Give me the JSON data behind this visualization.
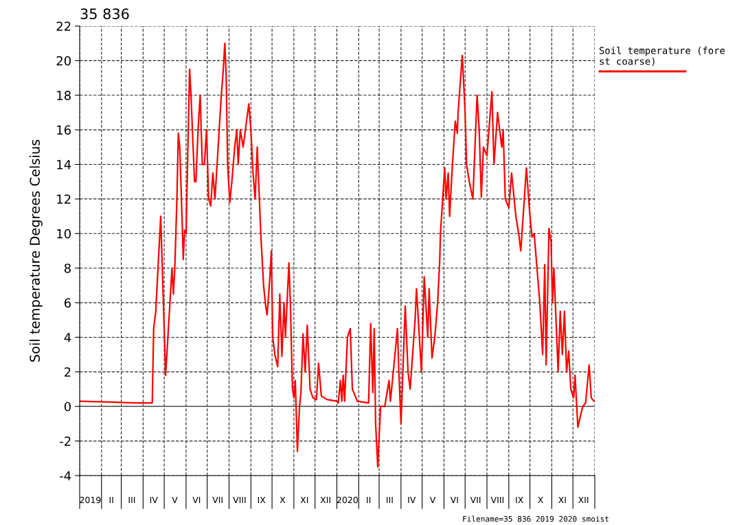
{
  "chart_data": {
    "type": "line",
    "title": "35 836",
    "ylabel": "Soil temperature Degrees Celsius",
    "annotations": [
      "Filename=35 836 2019 2020 smoist"
    ],
    "x": [
      "2019-01-01",
      "2019-02-15",
      "2019-03-20",
      "2019-04-14",
      "2019-04-16",
      "2019-04-19",
      "2019-04-26",
      "2019-05-03",
      "2019-05-12",
      "2019-05-14",
      "2019-05-16",
      "2019-05-19",
      "2019-05-21",
      "2019-05-23",
      "2019-05-27",
      "2019-05-28",
      "2019-05-30",
      "2019-06-01",
      "2019-06-06",
      "2019-06-08",
      "2019-06-13",
      "2019-06-15",
      "2019-06-18",
      "2019-06-21",
      "2019-06-24",
      "2019-06-27",
      "2019-06-30",
      "2019-07-03",
      "2019-07-06",
      "2019-07-09",
      "2019-07-12",
      "2019-07-15",
      "2019-07-18",
      "2019-07-21",
      "2019-07-23",
      "2019-07-26",
      "2019-07-28",
      "2019-07-30",
      "2019-08-02",
      "2019-08-05",
      "2019-08-09",
      "2019-08-12",
      "2019-08-14",
      "2019-08-17",
      "2019-08-21",
      "2019-08-29",
      "2019-09-01",
      "2019-09-04",
      "2019-09-07",
      "2019-09-10",
      "2019-09-12",
      "2019-09-15",
      "2019-09-19",
      "2019-09-22",
      "2019-09-24",
      "2019-09-28",
      "2019-09-30",
      "2019-10-02",
      "2019-10-05",
      "2019-10-09",
      "2019-10-12",
      "2019-10-15",
      "2019-10-18",
      "2019-10-20",
      "2019-10-25",
      "2019-10-27",
      "2019-10-30",
      "2019-11-01",
      "2019-11-03",
      "2019-11-06",
      "2019-11-09",
      "2019-11-11",
      "2019-11-14",
      "2019-11-17",
      "2019-11-20",
      "2019-11-24",
      "2019-11-28",
      "2019-12-03",
      "2019-12-06",
      "2019-12-10",
      "2019-12-18",
      "2020-01-01",
      "2020-01-03",
      "2020-01-06",
      "2020-01-08",
      "2020-01-10",
      "2020-01-12",
      "2020-01-16",
      "2020-01-20",
      "2020-01-23",
      "2020-01-30",
      "2020-02-15",
      "2020-02-18",
      "2020-02-21",
      "2020-02-23",
      "2020-02-25",
      "2020-02-28",
      "2020-03-03",
      "2020-03-09",
      "2020-03-15",
      "2020-03-17",
      "2020-03-27",
      "2020-03-29",
      "2020-04-01",
      "2020-04-07",
      "2020-04-11",
      "2020-04-14",
      "2020-04-21",
      "2020-04-23",
      "2020-04-30",
      "2020-05-04",
      "2020-05-09",
      "2020-05-11",
      "2020-05-15",
      "2020-05-19",
      "2020-05-23",
      "2020-05-26",
      "2020-05-27",
      "2020-06-02",
      "2020-06-04",
      "2020-06-07",
      "2020-06-09",
      "2020-06-13",
      "2020-06-17",
      "2020-06-20",
      "2020-06-21",
      "2020-06-27",
      "2020-07-01",
      "2020-07-03",
      "2020-07-07",
      "2020-07-12",
      "2020-07-14",
      "2020-07-18",
      "2020-07-21",
      "2020-07-24",
      "2020-07-27",
      "2020-08-01",
      "2020-08-08",
      "2020-08-11",
      "2020-08-16",
      "2020-08-22",
      "2020-08-24",
      "2020-08-27",
      "2020-09-01",
      "2020-09-05",
      "2020-09-11",
      "2020-09-15",
      "2020-09-18",
      "2020-09-26",
      "2020-10-01",
      "2020-10-04",
      "2020-10-07",
      "2020-10-11",
      "2020-10-15",
      "2020-10-19",
      "2020-10-22",
      "2020-10-24",
      "2020-10-28",
      "2020-10-31",
      "2020-11-02",
      "2020-11-04",
      "2020-11-10",
      "2020-11-13",
      "2020-11-16",
      "2020-11-19",
      "2020-11-22",
      "2020-11-25",
      "2020-11-28",
      "2020-12-02",
      "2020-12-04",
      "2020-12-08",
      "2020-12-12",
      "2020-12-15",
      "2020-12-19",
      "2020-12-24",
      "2020-12-27",
      "2020-12-31"
    ],
    "series": [
      {
        "name": "Soil temperature (forest coarse)",
        "color": "#ff0000",
        "values": [
          0.3,
          0.25,
          0.2,
          0.2,
          4.5,
          5.5,
          11,
          1.8,
          8,
          6.5,
          8,
          12,
          15.8,
          15,
          10,
          8.5,
          10.2,
          10,
          19.5,
          18,
          13,
          13,
          16,
          18,
          14,
          14,
          16,
          12,
          11.6,
          13.5,
          12,
          14,
          16,
          18,
          19,
          21,
          19,
          14,
          11.8,
          13,
          15,
          16,
          14,
          16,
          15,
          17.5,
          16,
          13.5,
          12,
          15,
          13,
          10,
          7,
          5.8,
          5.3,
          7.5,
          9,
          4,
          3,
          2.3,
          6.5,
          2.9,
          6,
          4,
          8.3,
          6,
          1,
          0.5,
          1.5,
          -2.6,
          0,
          0.8,
          4.2,
          2,
          4.7,
          1,
          0.5,
          0.4,
          2.5,
          0.6,
          0.4,
          0.3,
          0.2,
          1.5,
          0.3,
          1.8,
          0.3,
          4,
          4.5,
          1,
          0.3,
          0.2,
          4.8,
          0.8,
          4.5,
          -1,
          -3.5,
          0,
          0,
          1.5,
          0.3,
          4.5,
          2,
          -1,
          5.8,
          2,
          1,
          5,
          6.8,
          2,
          7.5,
          4,
          6.8,
          2.8,
          4,
          6,
          8.5,
          10,
          13.8,
          12,
          13.5,
          11,
          14,
          16.5,
          15.8,
          17,
          20.3,
          17,
          14,
          13,
          12,
          14,
          18,
          16,
          12.1,
          15,
          14.5,
          18.2,
          14,
          17,
          15,
          16,
          12,
          11.5,
          13.5,
          11,
          10,
          9,
          13.8,
          11,
          9.8,
          10,
          8,
          6,
          3,
          8.2,
          2.4,
          10.3,
          9.5,
          6,
          8,
          2,
          5.5,
          3,
          5.5,
          2,
          3.2,
          1,
          0.5,
          1.8,
          -1.2,
          -0.5,
          0,
          0.2,
          2.4,
          0.5,
          0.3
        ]
      }
    ],
    "xlim": [
      "2019-01-01",
      "2021-01-01"
    ],
    "xticks": [
      {
        "value": "2019-01-01",
        "label": null
      },
      {
        "value": "2019-02-01",
        "label": null
      },
      {
        "value": "2019-03-01",
        "label": null
      },
      {
        "value": "2019-04-01",
        "label": null
      },
      {
        "value": "2019-05-01",
        "label": null
      },
      {
        "value": "2019-06-01",
        "label": null
      },
      {
        "value": "2019-07-01",
        "label": null
      },
      {
        "value": "2019-08-01",
        "label": null
      },
      {
        "value": "2019-09-01",
        "label": null
      },
      {
        "value": "2019-10-01",
        "label": null
      },
      {
        "value": "2019-11-01",
        "label": null
      },
      {
        "value": "2019-12-01",
        "label": null
      },
      {
        "value": "2020-01-01",
        "label": null
      },
      {
        "value": "2020-02-01",
        "label": null
      },
      {
        "value": "2020-03-01",
        "label": null
      },
      {
        "value": "2020-04-01",
        "label": null
      },
      {
        "value": "2020-05-01",
        "label": null
      },
      {
        "value": "2020-06-01",
        "label": null
      },
      {
        "value": "2020-07-01",
        "label": null
      },
      {
        "value": "2020-08-01",
        "label": null
      },
      {
        "value": "2020-09-01",
        "label": null
      },
      {
        "value": "2020-10-01",
        "label": null
      },
      {
        "value": "2020-11-01",
        "label": null
      },
      {
        "value": "2020-12-01",
        "label": null
      },
      {
        "value": "2021-01-01",
        "label": null
      },
      {
        "value": "2019-01-16",
        "label": "2019"
      },
      {
        "value": "2019-02-15",
        "label": "II"
      },
      {
        "value": "2019-03-16",
        "label": "III"
      },
      {
        "value": "2019-04-16",
        "label": "IV"
      },
      {
        "value": "2019-05-16",
        "label": "V"
      },
      {
        "value": "2019-06-16",
        "label": "VI"
      },
      {
        "value": "2019-07-16",
        "label": "VII"
      },
      {
        "value": "2019-08-16",
        "label": "VIII"
      },
      {
        "value": "2019-09-16",
        "label": "IX"
      },
      {
        "value": "2019-10-16",
        "label": "X"
      },
      {
        "value": "2019-11-16",
        "label": "XI"
      },
      {
        "value": "2019-12-16",
        "label": "XII"
      },
      {
        "value": "2020-01-16",
        "label": "2020"
      },
      {
        "value": "2020-02-15",
        "label": "II"
      },
      {
        "value": "2020-03-16",
        "label": "III"
      },
      {
        "value": "2020-04-16",
        "label": "IV"
      },
      {
        "value": "2020-05-16",
        "label": "V"
      },
      {
        "value": "2020-06-16",
        "label": "VI"
      },
      {
        "value": "2020-07-16",
        "label": "VII"
      },
      {
        "value": "2020-08-16",
        "label": "VIII"
      },
      {
        "value": "2020-09-16",
        "label": "IX"
      },
      {
        "value": "2020-10-16",
        "label": "X"
      },
      {
        "value": "2020-11-16",
        "label": "XI"
      },
      {
        "value": "2020-12-16",
        "label": "XII"
      }
    ],
    "ylim": [
      -4,
      22
    ],
    "yticks": [
      -4,
      -2,
      0,
      2,
      4,
      6,
      8,
      10,
      12,
      14,
      16,
      18,
      20,
      22
    ],
    "ref_lines": [
      {
        "axis": "y",
        "value": 0,
        "color": "#555555",
        "line_style": "solid"
      }
    ],
    "grid": true,
    "legend": "top right",
    "marker": "none",
    "line_style": "solid"
  }
}
